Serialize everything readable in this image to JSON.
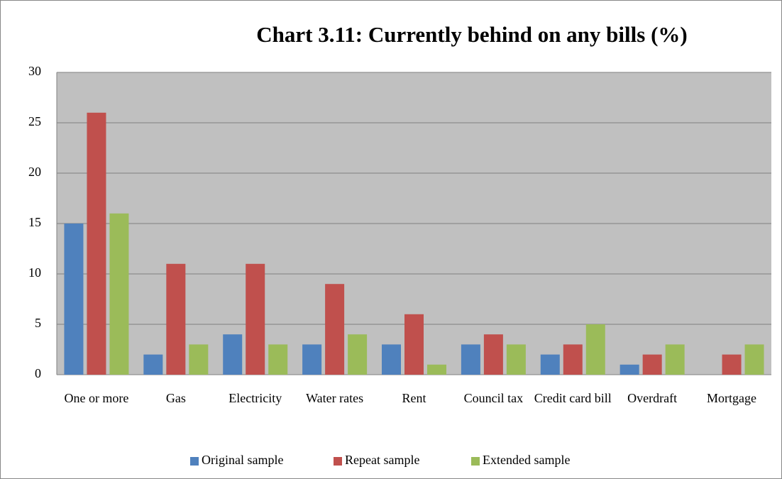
{
  "chart_data": {
    "type": "bar",
    "title": "Chart 3.11: Currently behind on any bills (%)",
    "categories": [
      "One or more",
      "Gas",
      "Electricity",
      "Water rates",
      "Rent",
      "Council tax",
      "Credit card bill",
      "Overdraft",
      "Mortgage"
    ],
    "series": [
      {
        "name": "Original sample",
        "color": "#4f81bd",
        "values": [
          15,
          2,
          4,
          3,
          3,
          3,
          2,
          1,
          0
        ]
      },
      {
        "name": "Repeat sample",
        "color": "#c0504d",
        "values": [
          26,
          11,
          11,
          9,
          6,
          4,
          3,
          2,
          2
        ]
      },
      {
        "name": "Extended sample",
        "color": "#9bbb59",
        "values": [
          16,
          3,
          3,
          4,
          1,
          3,
          5,
          3,
          3
        ]
      }
    ],
    "ylim": [
      0,
      30
    ],
    "yticks": [
      0,
      5,
      10,
      15,
      20,
      25,
      30
    ],
    "grid": true,
    "legend": "bottom"
  }
}
